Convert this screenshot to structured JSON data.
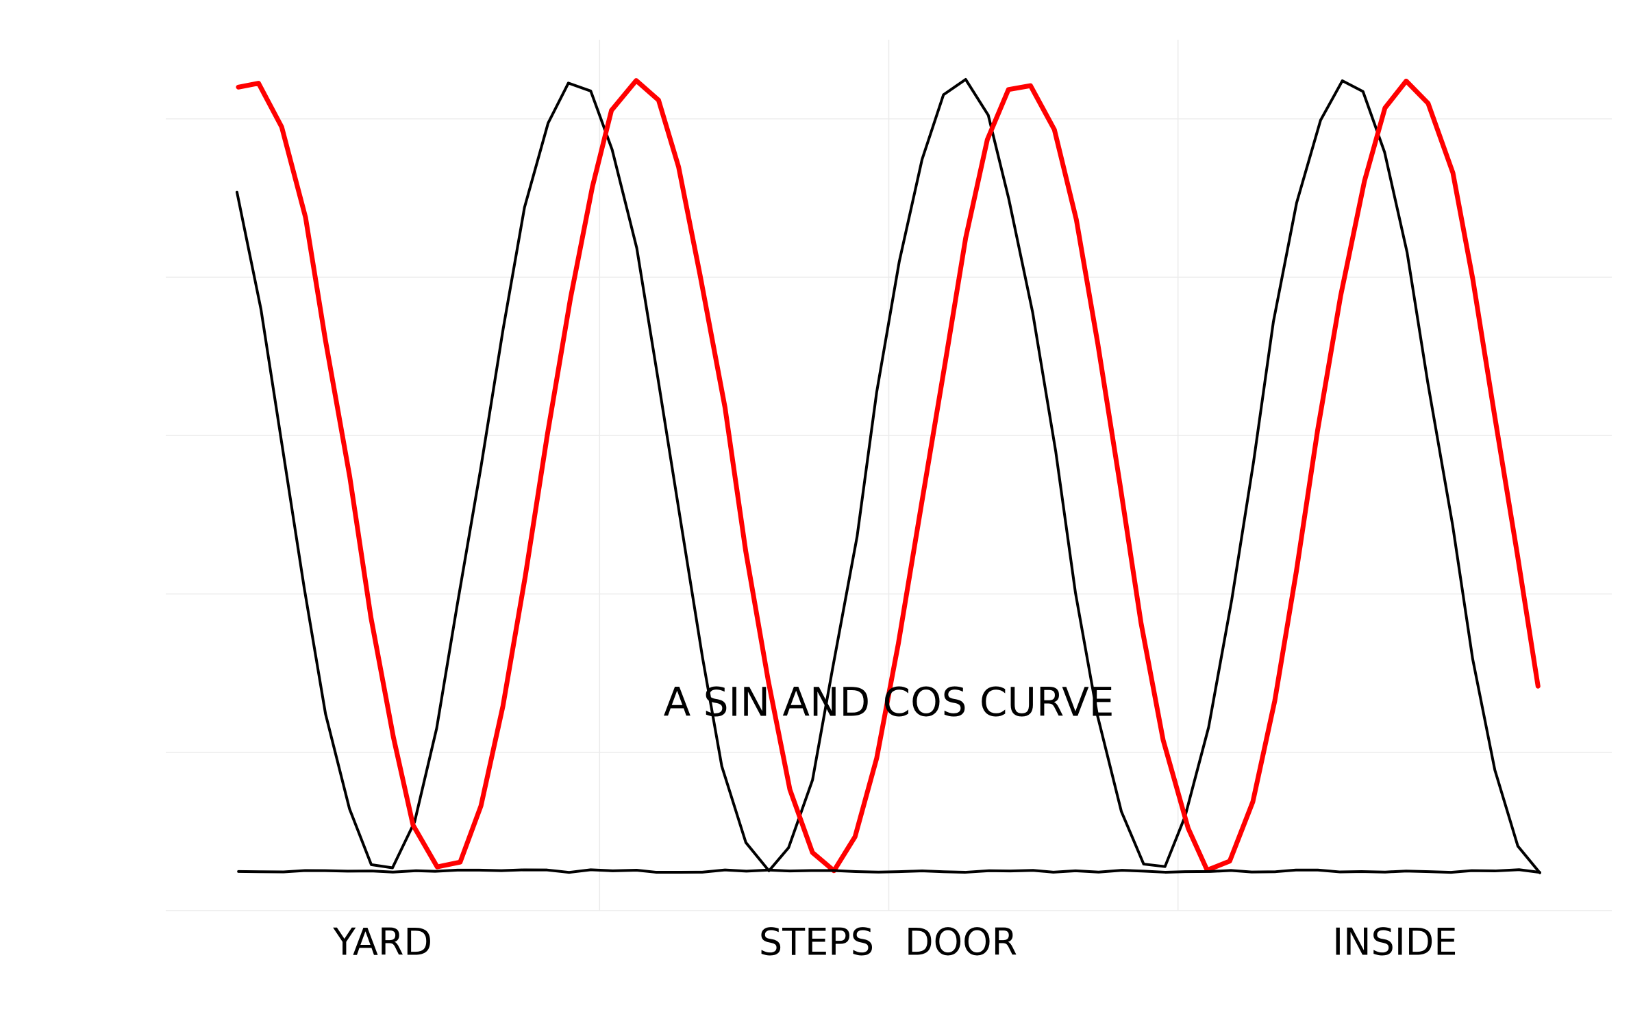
{
  "chart_data": {
    "type": "line",
    "title": "",
    "xlabel": "",
    "ylabel": "",
    "xlim": [
      -0.25,
      4.75
    ],
    "ylim": [
      -1.1,
      1.1
    ],
    "grid": true,
    "x_ticks": [
      {
        "value": 0.5,
        "label": "YARD"
      },
      {
        "value": 2.0,
        "label": "STEPS"
      },
      {
        "value": 2.5,
        "label": "DOOR"
      },
      {
        "value": 4.0,
        "label": "INSIDE"
      }
    ],
    "annotation": {
      "text": "A SIN AND COS CURVE",
      "x": 2.25,
      "y": -0.58
    },
    "series": [
      {
        "color": "#000000",
        "x_start": 0.0,
        "x_end": 4.5,
        "points": 60,
        "equation": "sin",
        "amplitude": 1.0,
        "frequency": 1.5,
        "phase": 2.35
      },
      {
        "color": "#ff0000",
        "x_start": 0.0,
        "x_end": 4.5,
        "points": 60,
        "equation": "sin",
        "amplitude": 1.0,
        "frequency": 1.5,
        "phase": 1.35
      },
      {
        "color": "#000000",
        "x_start": 0.0,
        "x_end": 4.5,
        "points": 60,
        "equation": "constant",
        "value": -1.0
      }
    ]
  }
}
